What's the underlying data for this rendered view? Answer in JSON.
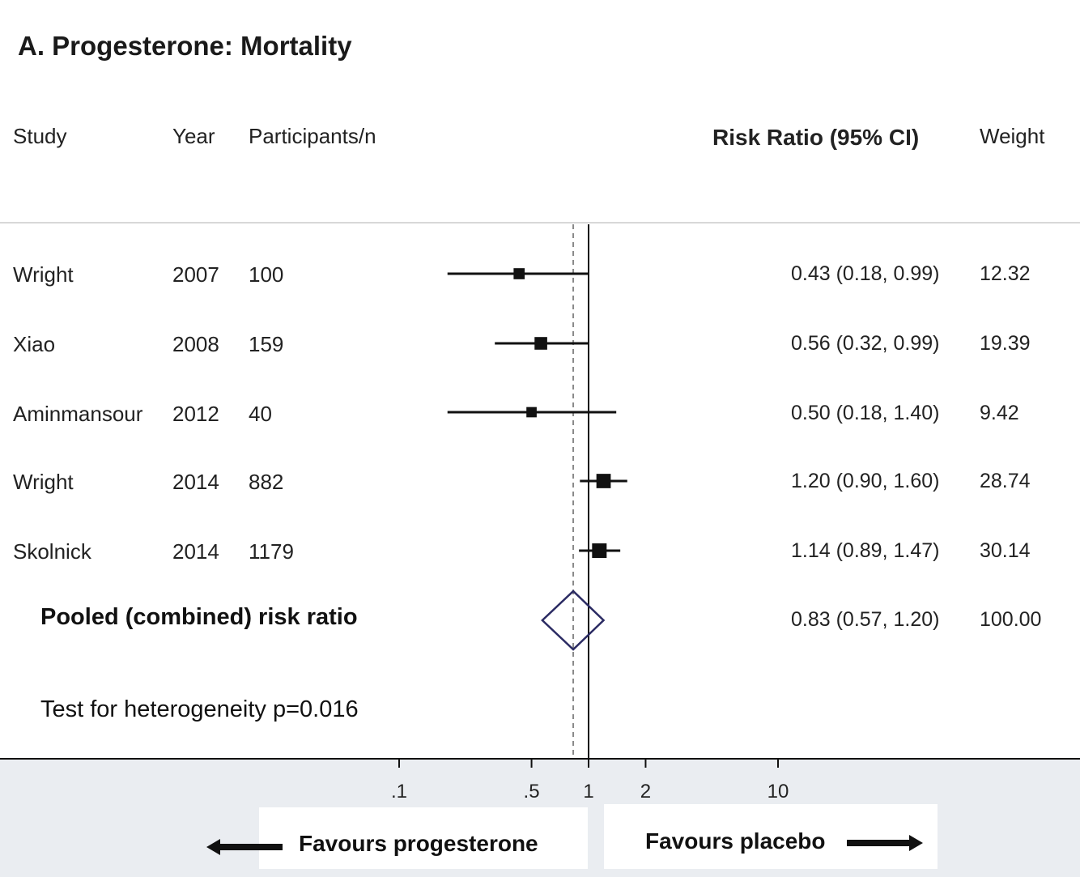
{
  "title": "A. Progesterone: Mortality",
  "headers": {
    "study": "Study",
    "year": "Year",
    "participants": "Participants/n",
    "effect": "Risk Ratio (95% CI)",
    "weight": "Weight"
  },
  "studies": [
    {
      "study": "Wright",
      "year": "2007",
      "n": "100",
      "ci_text": "0.43 (0.18, 0.99)",
      "weight": "12.32"
    },
    {
      "study": "Xiao",
      "year": "2008",
      "n": "159",
      "ci_text": "0.56 (0.32, 0.99)",
      "weight": "19.39"
    },
    {
      "study": "Aminmansour",
      "year": "2012",
      "n": "40",
      "ci_text": "0.50 (0.18, 1.40)",
      "weight": "9.42"
    },
    {
      "study": "Wright",
      "year": "2014",
      "n": "882",
      "ci_text": "1.20 (0.90, 1.60)",
      "weight": "28.74"
    },
    {
      "study": "Skolnick",
      "year": "2014",
      "n": "1179",
      "ci_text": "1.14 (0.89, 1.47)",
      "weight": "30.14"
    }
  ],
  "pooled": {
    "label": "Pooled (combined) risk ratio",
    "ci_text": "0.83 (0.57, 1.20)",
    "weight": "100.00"
  },
  "heterogeneity": "Test for heterogeneity p=0.016",
  "favours_left": "Favours progesterone",
  "favours_right": "Favours placebo",
  "colors": {
    "diamond": "#2b2b63",
    "line": "#111111",
    "band": "#eaedf1"
  },
  "chart_data": {
    "type": "forest",
    "scale": "log",
    "null_value": 1,
    "pooled_reference": 0.83,
    "x_ticks": [
      0.1,
      0.5,
      1,
      2,
      10
    ],
    "x_tick_labels": [
      ".1",
      ".5",
      "1",
      "2",
      "10"
    ],
    "series": [
      {
        "name": "Wright 2007",
        "estimate": 0.43,
        "lower": 0.18,
        "upper": 0.99,
        "weight": 12.32
      },
      {
        "name": "Xiao 2008",
        "estimate": 0.56,
        "lower": 0.32,
        "upper": 0.99,
        "weight": 19.39
      },
      {
        "name": "Aminmansour 2012",
        "estimate": 0.5,
        "lower": 0.18,
        "upper": 1.4,
        "weight": 9.42
      },
      {
        "name": "Wright 2014",
        "estimate": 1.2,
        "lower": 0.9,
        "upper": 1.6,
        "weight": 28.74
      },
      {
        "name": "Skolnick 2014",
        "estimate": 1.14,
        "lower": 0.89,
        "upper": 1.47,
        "weight": 30.14
      }
    ],
    "pooled": {
      "estimate": 0.83,
      "lower": 0.57,
      "upper": 1.2
    }
  }
}
